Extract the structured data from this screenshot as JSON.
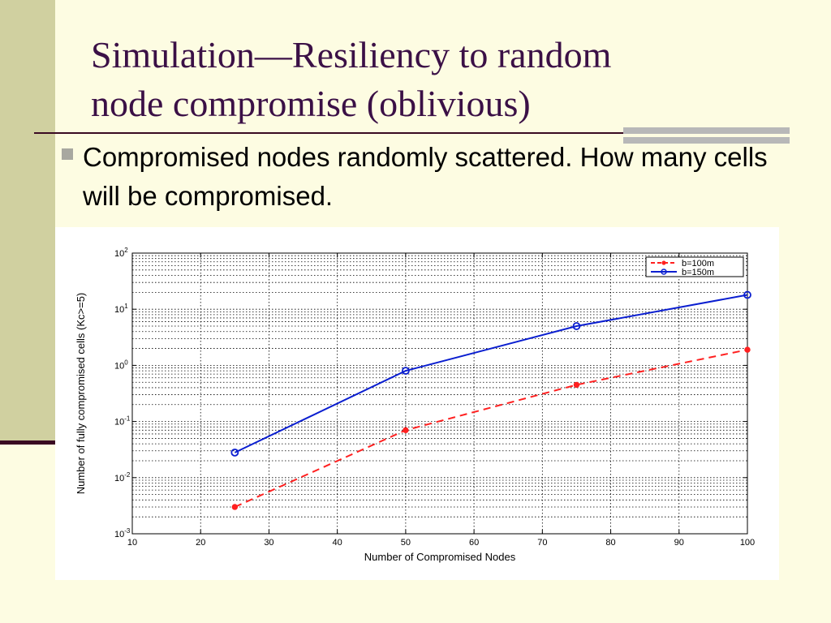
{
  "slide": {
    "title_line1": "Simulation—Resiliency to random",
    "title_line2": "node compromise (oblivious)",
    "bullet": "Compromised nodes randomly scattered. How many cells will be compromised."
  },
  "colors": {
    "background": "#fdfce2",
    "title": "#3b1046",
    "series_b100": "#ff2020",
    "series_b150": "#0a1ed0"
  },
  "chart_data": {
    "type": "line",
    "xlabel": "Number of Compromised Nodes",
    "ylabel": "Number of fully compromised cells (Kc>=5)",
    "xlim": [
      10,
      100
    ],
    "ylim": [
      0.001,
      100
    ],
    "yscale": "log",
    "grid": true,
    "legend_position": "top-right",
    "x_ticks": [
      "10",
      "20",
      "30",
      "40",
      "50",
      "60",
      "70",
      "80",
      "90",
      "100"
    ],
    "y_tick_exponents": [
      "-3",
      "-2",
      "-1",
      "0",
      "1",
      "2"
    ],
    "x": [
      25,
      50,
      75,
      100
    ],
    "series": [
      {
        "name": "b=100m",
        "values": [
          0.003,
          0.07,
          0.45,
          1.9
        ],
        "style": "dashed",
        "marker": "star"
      },
      {
        "name": "b=150m",
        "values": [
          0.028,
          0.8,
          5.0,
          18.0
        ],
        "style": "solid",
        "marker": "circle"
      }
    ]
  }
}
